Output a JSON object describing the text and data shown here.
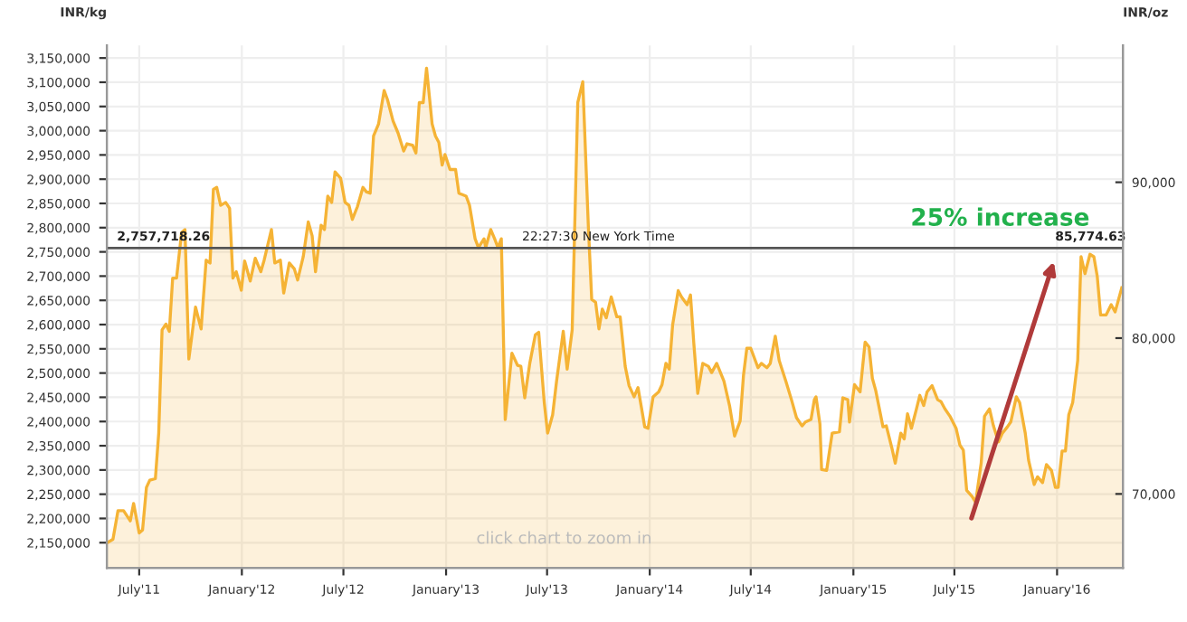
{
  "chart_data": {
    "type": "area",
    "ylabel": "INR/kg",
    "y2label": "INR/oz",
    "x": [
      "2011-05-05",
      "2011-05-15",
      "2011-05-24",
      "2011-06-03",
      "2011-06-15",
      "2011-06-21",
      "2011-07-01",
      "2011-07-07",
      "2011-07-14",
      "2011-07-20",
      "2011-07-30",
      "2011-08-05",
      "2011-08-11",
      "2011-08-18",
      "2011-08-24",
      "2011-08-30",
      "2011-09-06",
      "2011-09-15",
      "2011-09-21",
      "2011-09-28",
      "2011-10-10",
      "2011-10-20",
      "2011-10-29",
      "2011-11-05",
      "2011-11-11",
      "2011-11-17",
      "2011-11-24",
      "2011-12-03",
      "2011-12-10",
      "2011-12-16",
      "2011-12-22",
      "2011-12-31",
      "2012-01-06",
      "2012-01-16",
      "2012-01-25",
      "2012-02-04",
      "2012-02-10",
      "2012-02-23",
      "2012-02-29",
      "2012-03-10",
      "2012-03-16",
      "2012-03-26",
      "2012-04-04",
      "2012-04-10",
      "2012-04-20",
      "2012-04-29",
      "2012-05-06",
      "2012-05-12",
      "2012-05-22",
      "2012-05-28",
      "2012-06-03",
      "2012-06-10",
      "2012-06-16",
      "2012-06-26",
      "2012-07-04",
      "2012-07-11",
      "2012-07-17",
      "2012-07-26",
      "2012-08-05",
      "2012-08-11",
      "2012-08-18",
      "2012-08-24",
      "2012-09-02",
      "2012-09-12",
      "2012-09-18",
      "2012-09-28",
      "2012-10-07",
      "2012-10-17",
      "2012-10-23",
      "2012-11-02",
      "2012-11-08",
      "2012-11-14",
      "2012-11-21",
      "2012-11-27",
      "2012-12-07",
      "2012-12-13",
      "2012-12-19",
      "2012-12-25",
      "2012-12-30",
      "2013-01-08",
      "2013-01-18",
      "2013-01-24",
      "2013-02-06",
      "2013-02-12",
      "2013-02-22",
      "2013-02-28",
      "2013-03-10",
      "2013-03-13",
      "2013-03-22",
      "2013-03-29",
      "2013-04-04",
      "2013-04-10",
      "2013-04-17",
      "2013-04-29",
      "2013-05-09",
      "2013-05-15",
      "2013-05-22",
      "2013-05-31",
      "2013-06-10",
      "2013-06-16",
      "2013-06-26",
      "2013-07-02",
      "2013-07-11",
      "2013-07-18",
      "2013-07-30",
      "2013-08-06",
      "2013-08-15",
      "2013-08-25",
      "2013-09-03",
      "2013-09-13",
      "2013-09-19",
      "2013-09-26",
      "2013-10-02",
      "2013-10-08",
      "2013-10-15",
      "2013-10-24",
      "2013-11-03",
      "2013-11-09",
      "2013-11-18",
      "2013-11-25",
      "2013-12-04",
      "2013-12-11",
      "2013-12-23",
      "2013-12-29",
      "2014-01-07",
      "2014-01-17",
      "2014-01-23",
      "2014-01-30",
      "2014-02-05",
      "2014-02-11",
      "2014-02-21",
      "2014-02-27",
      "2014-03-09",
      "2014-03-15",
      "2014-03-21",
      "2014-03-28",
      "2014-04-06",
      "2014-04-16",
      "2014-04-22",
      "2014-05-01",
      "2014-05-14",
      "2014-05-24",
      "2014-06-02",
      "2014-06-12",
      "2014-06-18",
      "2014-06-24",
      "2014-07-01",
      "2014-07-14",
      "2014-07-20",
      "2014-07-30",
      "2014-08-05",
      "2014-08-14",
      "2014-08-21",
      "2014-09-02",
      "2014-09-12",
      "2014-09-21",
      "2014-10-01",
      "2014-10-07",
      "2014-10-17",
      "2014-10-23",
      "2014-10-26",
      "2014-11-02",
      "2014-11-05",
      "2014-11-14",
      "2014-11-24",
      "2014-12-07",
      "2014-12-13",
      "2014-12-22",
      "2014-12-25",
      "2015-01-03",
      "2015-01-13",
      "2015-01-22",
      "2015-01-29",
      "2015-02-04",
      "2015-02-10",
      "2015-02-23",
      "2015-03-01",
      "2015-03-11",
      "2015-03-17",
      "2015-03-27",
      "2015-04-02",
      "2015-04-08",
      "2015-04-15",
      "2015-04-24",
      "2015-04-30",
      "2015-05-07",
      "2015-05-13",
      "2015-05-22",
      "2015-06-01",
      "2015-06-07",
      "2015-06-14",
      "2015-06-23",
      "2015-07-04",
      "2015-07-11",
      "2015-07-17",
      "2015-07-23",
      "2015-08-02",
      "2015-08-08",
      "2015-08-18",
      "2015-08-24",
      "2015-09-02",
      "2015-09-09",
      "2015-09-18",
      "2015-09-25",
      "2015-10-04",
      "2015-10-10",
      "2015-10-20",
      "2015-10-26",
      "2015-11-05",
      "2015-11-11",
      "2015-11-21",
      "2015-11-27",
      "2015-12-06",
      "2015-12-13",
      "2015-12-22",
      "2015-12-29",
      "2016-01-03",
      "2016-01-10",
      "2016-01-16",
      "2016-01-22",
      "2016-01-29",
      "2016-02-07",
      "2016-02-13",
      "2016-02-20",
      "2016-02-29",
      "2016-03-07",
      "2016-03-13",
      "2016-03-19",
      "2016-03-29",
      "2016-04-07",
      "2016-04-14",
      "2016-04-26"
    ],
    "series": [
      {
        "color": "#f5b335",
        "values": [
          2150000,
          2157000,
          2216000,
          2216000,
          2195000,
          2231000,
          2170000,
          2176000,
          2264000,
          2279000,
          2282000,
          2376000,
          2589000,
          2601000,
          2586000,
          2696000,
          2696000,
          2790000,
          2796000,
          2529000,
          2636000,
          2591000,
          2733000,
          2727000,
          2879000,
          2883000,
          2846000,
          2852000,
          2840000,
          2696000,
          2709000,
          2671000,
          2731000,
          2690000,
          2737000,
          2709000,
          2733000,
          2796000,
          2727000,
          2733000,
          2665000,
          2727000,
          2715000,
          2692000,
          2740000,
          2812000,
          2783000,
          2709000,
          2805000,
          2796000,
          2865000,
          2852000,
          2915000,
          2902000,
          2852000,
          2846000,
          2817000,
          2843000,
          2883000,
          2874000,
          2871000,
          2989000,
          3014000,
          3083000,
          3064000,
          3020000,
          2995000,
          2958000,
          2973000,
          2970000,
          2954000,
          3058000,
          3058000,
          3129000,
          3014000,
          2989000,
          2976000,
          2929000,
          2951000,
          2920000,
          2920000,
          2871000,
          2865000,
          2846000,
          2777000,
          2759000,
          2777000,
          2759000,
          2796000,
          2777000,
          2759000,
          2777000,
          2404000,
          2541000,
          2516000,
          2514000,
          2449000,
          2520000,
          2579000,
          2584000,
          2439000,
          2376000,
          2414000,
          2483000,
          2586000,
          2508000,
          2589000,
          3058000,
          3101000,
          2802000,
          2652000,
          2646000,
          2591000,
          2632000,
          2614000,
          2657000,
          2616000,
          2616000,
          2514000,
          2474000,
          2451000,
          2470000,
          2389000,
          2386000,
          2451000,
          2461000,
          2476000,
          2520000,
          2508000,
          2599000,
          2670000,
          2657000,
          2641000,
          2661000,
          2561000,
          2458000,
          2520000,
          2514000,
          2501000,
          2520000,
          2483000,
          2433000,
          2370000,
          2401000,
          2495000,
          2551000,
          2551000,
          2511000,
          2520000,
          2511000,
          2520000,
          2576000,
          2526000,
          2483000,
          2445000,
          2408000,
          2391000,
          2399000,
          2404000,
          2445000,
          2451000,
          2395000,
          2301000,
          2299000,
          2376000,
          2379000,
          2449000,
          2445000,
          2399000,
          2476000,
          2461000,
          2564000,
          2554000,
          2489000,
          2464000,
          2389000,
          2391000,
          2345000,
          2314000,
          2376000,
          2364000,
          2416000,
          2386000,
          2426000,
          2454000,
          2433000,
          2461000,
          2474000,
          2445000,
          2441000,
          2426000,
          2411000,
          2386000,
          2351000,
          2341000,
          2258000,
          2245000,
          2233000,
          2314000,
          2411000,
          2426000,
          2391000,
          2358000,
          2376000,
          2389000,
          2399000,
          2451000,
          2439000,
          2376000,
          2320000,
          2270000,
          2286000,
          2274000,
          2311000,
          2299000,
          2264000,
          2264000,
          2339000,
          2339000,
          2414000,
          2439000,
          2526000,
          2740000,
          2705000,
          2745000,
          2740000,
          2700000,
          2620000,
          2620000,
          2641000,
          2626000,
          2676000
        ]
      }
    ],
    "xlim": [
      "2011-05-04",
      "2016-04-28"
    ],
    "xticks": [
      {
        "value": "2011-07-01",
        "label": "July'11"
      },
      {
        "value": "2012-01-01",
        "label": "January'12"
      },
      {
        "value": "2012-07-01",
        "label": "July'12"
      },
      {
        "value": "2013-01-01",
        "label": "January'13"
      },
      {
        "value": "2013-07-01",
        "label": "July'13"
      },
      {
        "value": "2014-01-01",
        "label": "January'14"
      },
      {
        "value": "2014-07-01",
        "label": "July'14"
      },
      {
        "value": "2015-01-01",
        "label": "January'15"
      },
      {
        "value": "2015-07-01",
        "label": "July'15"
      },
      {
        "value": "2016-01-01",
        "label": "January'16"
      }
    ],
    "ylim": [
      2098000,
      3176000
    ],
    "yticks": [
      {
        "value": 2150000,
        "label": "2,150,000"
      },
      {
        "value": 2200000,
        "label": "2,200,000"
      },
      {
        "value": 2250000,
        "label": "2,250,000"
      },
      {
        "value": 2300000,
        "label": "2,300,000"
      },
      {
        "value": 2350000,
        "label": "2,350,000"
      },
      {
        "value": 2400000,
        "label": "2,400,000"
      },
      {
        "value": 2450000,
        "label": "2,450,000"
      },
      {
        "value": 2500000,
        "label": "2,500,000"
      },
      {
        "value": 2550000,
        "label": "2,550,000"
      },
      {
        "value": 2600000,
        "label": "2,600,000"
      },
      {
        "value": 2650000,
        "label": "2,650,000"
      },
      {
        "value": 2700000,
        "label": "2,700,000"
      },
      {
        "value": 2750000,
        "label": "2,750,000"
      },
      {
        "value": 2800000,
        "label": "2,800,000"
      },
      {
        "value": 2850000,
        "label": "2,850,000"
      },
      {
        "value": 2900000,
        "label": "2,900,000"
      },
      {
        "value": 2950000,
        "label": "2,950,000"
      },
      {
        "value": 3000000,
        "label": "3,000,000"
      },
      {
        "value": 3050000,
        "label": "3,050,000"
      },
      {
        "value": 3100000,
        "label": "3,100,000"
      },
      {
        "value": 3150000,
        "label": "3,150,000"
      }
    ],
    "y2lim": [
      65255,
      98782
    ],
    "y2ticks": [
      {
        "value": 70000,
        "label": "70,000"
      },
      {
        "value": 80000,
        "label": "80,000"
      },
      {
        "value": 90000,
        "label": "90,000"
      }
    ],
    "ref_lines": [
      {
        "axis": "y",
        "value": 2757718.26,
        "label": "2,757,718.26",
        "color": "#555555"
      }
    ],
    "annotations": [
      {
        "text": "22:27:30 New York Time",
        "x": "2013-10-01",
        "y": 2757718.26
      },
      {
        "text": "85,774.63",
        "x": "2016-03-01",
        "y": 2757718.26
      },
      {
        "text": "25% increase",
        "x": "2015-12-29",
        "y": 2740000
      },
      "click chart to zoom in"
    ],
    "grid": true
  }
}
